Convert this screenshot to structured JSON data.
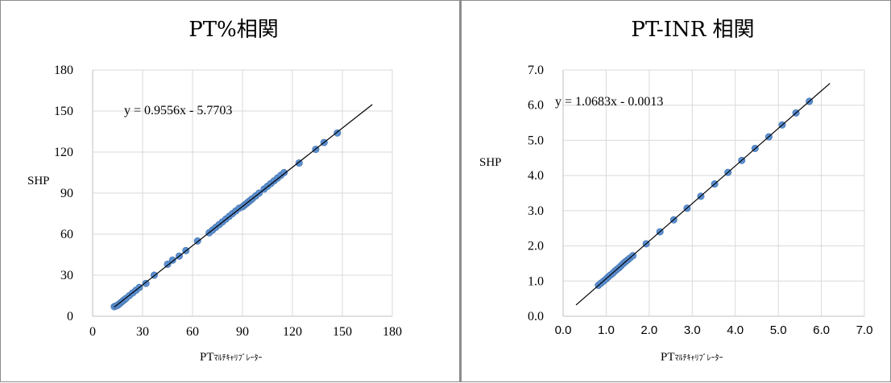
{
  "chart_data": [
    {
      "type": "scatter",
      "title": "PT%相関",
      "xlabel": "PT",
      "xlabel_suffix": "ﾏﾙﾁｷｬﾘﾌﾞﾚｰﾀｰ",
      "ylabel": "SHP",
      "xlim": [
        0,
        180
      ],
      "ylim": [
        0,
        180
      ],
      "xticks": [
        "0",
        "30",
        "60",
        "90",
        "120",
        "150",
        "180"
      ],
      "yticks": [
        "0",
        "30",
        "60",
        "90",
        "120",
        "150",
        "180"
      ],
      "grid": true,
      "trendline": {
        "equation": "y = 0.9556x - 5.7703",
        "slope": 0.9556,
        "intercept": -5.7703,
        "x_range": [
          13,
          168
        ]
      },
      "marker_color": "#5b8fd0",
      "series": [
        {
          "points": [
            [
              13,
              7
            ],
            [
              14,
              7.5
            ],
            [
              15,
              8
            ],
            [
              16,
              9
            ],
            [
              17,
              10
            ],
            [
              18,
              11
            ],
            [
              19,
              12
            ],
            [
              20,
              13
            ],
            [
              22,
              15
            ],
            [
              24,
              17
            ],
            [
              26,
              19
            ],
            [
              28,
              21
            ],
            [
              32,
              24
            ],
            [
              37,
              30
            ],
            [
              45,
              38
            ],
            [
              48,
              41
            ],
            [
              52,
              44
            ],
            [
              56,
              48
            ],
            [
              63,
              55
            ],
            [
              70,
              61
            ],
            [
              72,
              63
            ],
            [
              74,
              65
            ],
            [
              76,
              67
            ],
            [
              78,
              69
            ],
            [
              80,
              71
            ],
            [
              82,
              73
            ],
            [
              84,
              75
            ],
            [
              86,
              77
            ],
            [
              88,
              79
            ],
            [
              90,
              80
            ],
            [
              91,
              81
            ],
            [
              92,
              82
            ],
            [
              93,
              83
            ],
            [
              94,
              84
            ],
            [
              95,
              85
            ],
            [
              96,
              86
            ],
            [
              98,
              88
            ],
            [
              100,
              90
            ],
            [
              103,
              93
            ],
            [
              105,
              95
            ],
            [
              107,
              97
            ],
            [
              109,
              99
            ],
            [
              111,
              101
            ],
            [
              113,
              103
            ],
            [
              115,
              105
            ],
            [
              124,
              112
            ],
            [
              134,
              122
            ],
            [
              139,
              127
            ],
            [
              147,
              134
            ]
          ]
        }
      ]
    },
    {
      "type": "scatter",
      "title": "PT-INR 相関",
      "xlabel": "PT",
      "xlabel_suffix": "ﾏﾙﾁｷｬﾘﾌﾞﾚｰﾀｰ",
      "ylabel": "SHP",
      "xlim": [
        0,
        7
      ],
      "ylim": [
        0,
        7
      ],
      "xticks": [
        "0.0",
        "1.0",
        "2.0",
        "3.0",
        "4.0",
        "5.0",
        "6.0",
        "7.0"
      ],
      "yticks": [
        "0.0",
        "1.0",
        "2.0",
        "3.0",
        "4.0",
        "5.0",
        "6.0",
        "7.0"
      ],
      "grid": true,
      "trendline": {
        "equation": "y = 1.0683x - 0.0013",
        "slope": 1.0683,
        "intercept": -0.0013,
        "x_range": [
          0.3,
          6.2
        ]
      },
      "marker_color": "#5b8fd0",
      "series": [
        {
          "points": [
            [
              0.82,
              0.88
            ],
            [
              0.88,
              0.94
            ],
            [
              0.94,
              1.0
            ],
            [
              1.0,
              1.06
            ],
            [
              1.05,
              1.12
            ],
            [
              1.1,
              1.17
            ],
            [
              1.15,
              1.22
            ],
            [
              1.2,
              1.28
            ],
            [
              1.25,
              1.33
            ],
            [
              1.3,
              1.38
            ],
            [
              1.35,
              1.44
            ],
            [
              1.4,
              1.5
            ],
            [
              1.45,
              1.55
            ],
            [
              1.5,
              1.6
            ],
            [
              1.55,
              1.65
            ],
            [
              1.62,
              1.72
            ],
            [
              1.93,
              2.06
            ],
            [
              2.25,
              2.4
            ],
            [
              2.57,
              2.74
            ],
            [
              2.88,
              3.07
            ],
            [
              3.2,
              3.41
            ],
            [
              3.52,
              3.76
            ],
            [
              3.83,
              4.09
            ],
            [
              4.15,
              4.43
            ],
            [
              4.46,
              4.77
            ],
            [
              4.78,
              5.1
            ],
            [
              5.09,
              5.44
            ],
            [
              5.41,
              5.78
            ],
            [
              5.72,
              6.11
            ]
          ]
        }
      ]
    }
  ]
}
